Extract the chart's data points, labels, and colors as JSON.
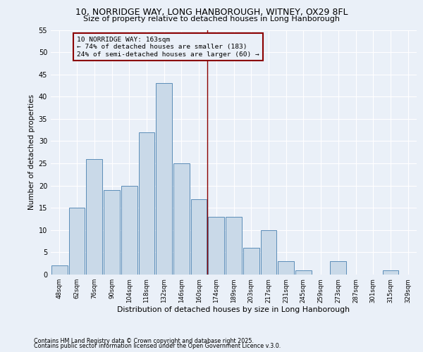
{
  "title1": "10, NORRIDGE WAY, LONG HANBOROUGH, WITNEY, OX29 8FL",
  "title2": "Size of property relative to detached houses in Long Hanborough",
  "xlabel": "Distribution of detached houses by size in Long Hanborough",
  "ylabel": "Number of detached properties",
  "bar_labels": [
    "48sqm",
    "62sqm",
    "76sqm",
    "90sqm",
    "104sqm",
    "118sqm",
    "132sqm",
    "146sqm",
    "160sqm",
    "174sqm",
    "189sqm",
    "203sqm",
    "217sqm",
    "231sqm",
    "245sqm",
    "259sqm",
    "273sqm",
    "287sqm",
    "301sqm",
    "315sqm",
    "329sqm"
  ],
  "bar_heights": [
    2,
    15,
    26,
    19,
    20,
    32,
    43,
    25,
    17,
    13,
    13,
    6,
    10,
    3,
    1,
    0,
    3,
    0,
    0,
    1,
    0
  ],
  "bar_color": "#c9d9e8",
  "bar_edge_color": "#5b8db8",
  "bg_color": "#eaf0f8",
  "grid_color": "#ffffff",
  "vline_x": 8.5,
  "vline_color": "#8b0000",
  "annotation_text": "10 NORRIDGE WAY: 163sqm\n← 74% of detached houses are smaller (183)\n24% of semi-detached houses are larger (60) →",
  "annotation_box_color": "#8b0000",
  "ylim": [
    0,
    55
  ],
  "yticks": [
    0,
    5,
    10,
    15,
    20,
    25,
    30,
    35,
    40,
    45,
    50,
    55
  ],
  "footer1": "Contains HM Land Registry data © Crown copyright and database right 2025.",
  "footer2": "Contains public sector information licensed under the Open Government Licence v.3.0."
}
